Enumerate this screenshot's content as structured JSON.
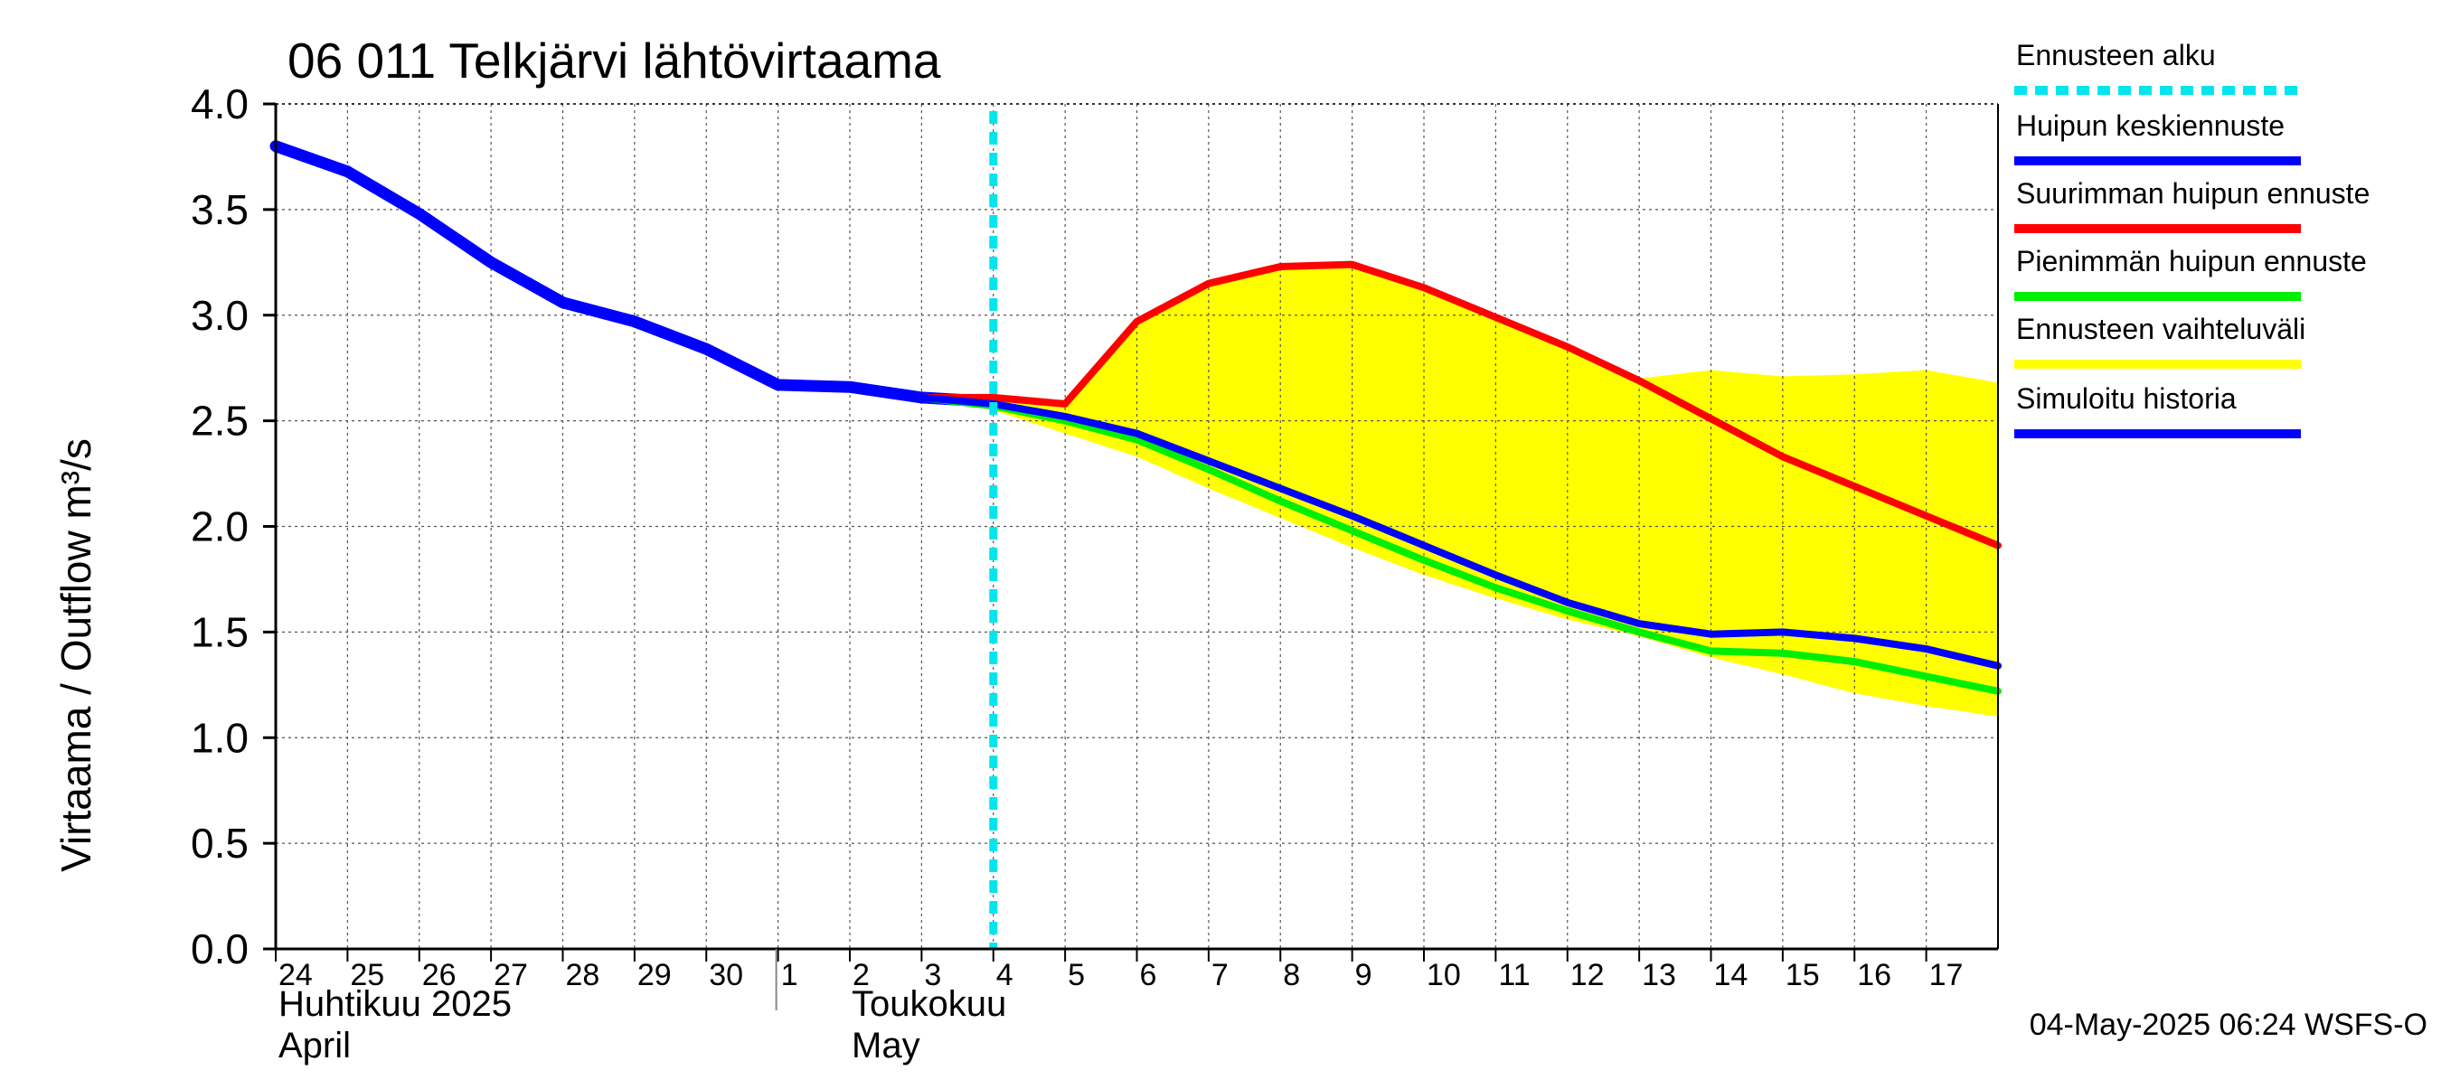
{
  "chart_data": {
    "type": "line",
    "title": "06 011 Telkjärvi lähtövirtaama",
    "ylabel": "Virtaama / Outflow    m³/s",
    "xlabel": "",
    "ylim": [
      0,
      4.0
    ],
    "xlim": [
      0,
      24
    ],
    "yticks": [
      "0.0",
      "0.5",
      "1.0",
      "1.5",
      "2.0",
      "2.5",
      "3.0",
      "3.5",
      "4.0"
    ],
    "yticks_values": [
      0,
      0.5,
      1.0,
      1.5,
      2.0,
      2.5,
      3.0,
      3.5,
      4.0
    ],
    "x_tick_labels": [
      "24",
      "25",
      "26",
      "27",
      "28",
      "29",
      "30",
      "1",
      "2",
      "3",
      "4",
      "5",
      "6",
      "7",
      "8",
      "9",
      "10",
      "11",
      "12",
      "13",
      "14",
      "15",
      "16",
      "17"
    ],
    "month_labels": {
      "fi_april": "Huhtikuu  2025",
      "en_april": "April",
      "fi_may": "Toukokuu",
      "en_may": "May"
    },
    "month_divider_x": 7,
    "grid": true,
    "forecast_start_x": 10,
    "footer": "04-May-2025 06:24 WSFS-O",
    "legend_position": "right",
    "legend": [
      {
        "label": "Ennusteen alku",
        "color": "#00e5ee",
        "style": "dashed"
      },
      {
        "label": "Huipun keskiennuste",
        "color": "#0000ff",
        "style": "solid"
      },
      {
        "label": "Suurimman huipun ennuste",
        "color": "#ff0000",
        "style": "solid"
      },
      {
        "label": "Pienimmän huipun ennuste",
        "color": "#00ee00",
        "style": "solid"
      },
      {
        "label": "Ennusteen vaihteluväli",
        "color": "#ffff00",
        "style": "solid"
      },
      {
        "label": "Simuloitu historia",
        "color": "#0000ff",
        "style": "solid"
      }
    ],
    "band": {
      "name": "Ennusteen vaihteluväli",
      "color": "#ffff00",
      "upper": [
        [
          9.5,
          2.6
        ],
        [
          10,
          2.6
        ],
        [
          10.5,
          2.6
        ],
        [
          11,
          2.6
        ],
        [
          12,
          2.97
        ],
        [
          13,
          3.15
        ],
        [
          14,
          3.23
        ],
        [
          15,
          3.24
        ],
        [
          16,
          3.13
        ],
        [
          17,
          2.99
        ],
        [
          18,
          2.84
        ],
        [
          19,
          2.7
        ],
        [
          20,
          2.74
        ],
        [
          21,
          2.71
        ],
        [
          22,
          2.72
        ],
        [
          23,
          2.74
        ],
        [
          24,
          2.68
        ]
      ],
      "lower": [
        [
          9.5,
          2.6
        ],
        [
          10,
          2.55
        ],
        [
          11,
          2.44
        ],
        [
          12,
          2.33
        ],
        [
          13,
          2.18
        ],
        [
          14,
          2.04
        ],
        [
          15,
          1.9
        ],
        [
          16,
          1.77
        ],
        [
          17,
          1.66
        ],
        [
          18,
          1.56
        ],
        [
          19,
          1.48
        ],
        [
          20,
          1.38
        ],
        [
          21,
          1.3
        ],
        [
          22,
          1.21
        ],
        [
          23,
          1.15
        ],
        [
          24,
          1.1
        ]
      ]
    },
    "series": [
      {
        "name": "Simuloitu historia",
        "color": "#0000ff",
        "points": [
          [
            0,
            3.8
          ],
          [
            1,
            3.68
          ],
          [
            2,
            3.48
          ],
          [
            3,
            3.25
          ],
          [
            4,
            3.06
          ],
          [
            5,
            2.97
          ],
          [
            6,
            2.84
          ],
          [
            7,
            2.67
          ],
          [
            8,
            2.66
          ],
          [
            9,
            2.61
          ],
          [
            10,
            2.59
          ]
        ]
      },
      {
        "name": "Suurimman huipun ennuste",
        "color": "#ff0000",
        "points": [
          [
            9,
            2.61
          ],
          [
            10,
            2.61
          ],
          [
            11,
            2.58
          ],
          [
            12,
            2.97
          ],
          [
            13,
            3.15
          ],
          [
            14,
            3.23
          ],
          [
            15,
            3.24
          ],
          [
            16,
            3.13
          ],
          [
            17,
            2.99
          ],
          [
            18,
            2.85
          ],
          [
            19,
            2.69
          ],
          [
            20,
            2.51
          ],
          [
            21,
            2.33
          ],
          [
            22,
            2.19
          ],
          [
            23,
            2.05
          ],
          [
            24,
            1.91
          ]
        ]
      },
      {
        "name": "Pienimmän huipun ennuste",
        "color": "#00ee00",
        "points": [
          [
            9,
            2.61
          ],
          [
            10,
            2.57
          ],
          [
            11,
            2.5
          ],
          [
            12,
            2.41
          ],
          [
            13,
            2.27
          ],
          [
            14,
            2.12
          ],
          [
            15,
            1.98
          ],
          [
            16,
            1.84
          ],
          [
            17,
            1.71
          ],
          [
            18,
            1.6
          ],
          [
            19,
            1.5
          ],
          [
            20,
            1.41
          ],
          [
            21,
            1.4
          ],
          [
            22,
            1.36
          ],
          [
            23,
            1.29
          ],
          [
            24,
            1.22
          ]
        ]
      },
      {
        "name": "Huipun keskiennuste",
        "color": "#0000ff",
        "points": [
          [
            9,
            2.61
          ],
          [
            10,
            2.58
          ],
          [
            11,
            2.52
          ],
          [
            12,
            2.44
          ],
          [
            13,
            2.31
          ],
          [
            14,
            2.18
          ],
          [
            15,
            2.05
          ],
          [
            16,
            1.91
          ],
          [
            17,
            1.77
          ],
          [
            18,
            1.64
          ],
          [
            19,
            1.54
          ],
          [
            20,
            1.49
          ],
          [
            21,
            1.5
          ],
          [
            22,
            1.47
          ],
          [
            23,
            1.42
          ],
          [
            24,
            1.34
          ]
        ]
      }
    ]
  }
}
